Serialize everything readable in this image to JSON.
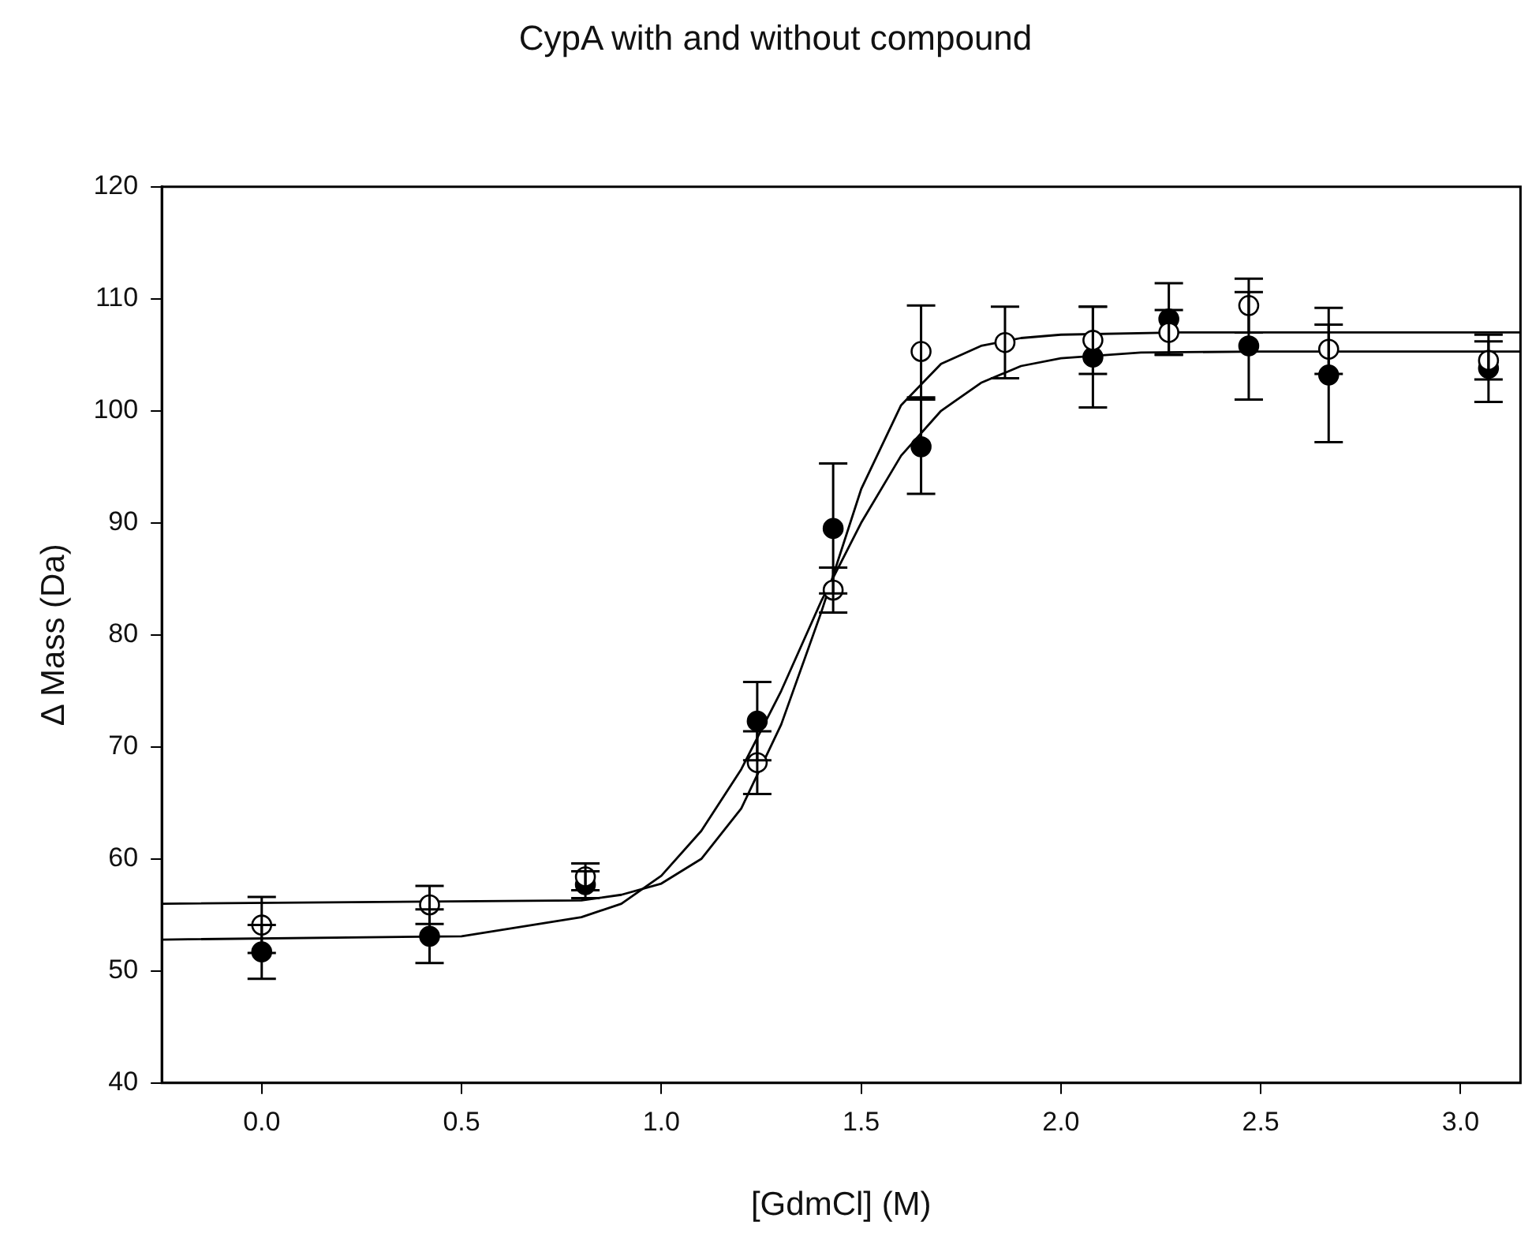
{
  "chart_data": {
    "type": "scatter",
    "title": "CypA with and without compound",
    "xlabel": "[GdmCl] (M)",
    "ylabel": "Δ Mass (Da)",
    "xlim": [
      -0.25,
      3.15
    ],
    "xticks": [
      {
        "value": 0,
        "label": "0.0"
      },
      {
        "value": 0.5,
        "label": "0.5"
      },
      {
        "value": 1,
        "label": "1.0"
      },
      {
        "value": 1.5,
        "label": "1.5"
      },
      {
        "value": 2,
        "label": "2.0"
      },
      {
        "value": 2.5,
        "label": "2.5"
      },
      {
        "value": 3,
        "label": "3.0"
      }
    ],
    "ylim": [
      40,
      120
    ],
    "yticks": [
      40,
      50,
      60,
      70,
      80,
      90,
      100,
      110,
      120
    ],
    "grid": false,
    "legend": false,
    "series": [
      {
        "type": "line",
        "marker": "none",
        "color": "#000000",
        "x": [
          -0.25,
          0.5,
          0.8,
          0.9,
          1.0,
          1.1,
          1.2,
          1.3,
          1.4,
          1.5,
          1.6,
          1.7,
          1.8,
          1.9,
          2.0,
          2.2,
          2.5,
          3.15
        ],
        "values": [
          52.8,
          53.1,
          54.8,
          56,
          58.5,
          62.5,
          68,
          75,
          83,
          90,
          96,
          100,
          102.5,
          104,
          104.7,
          105.2,
          105.3,
          105.3
        ]
      },
      {
        "type": "line",
        "marker": "none",
        "color": "#000000",
        "x": [
          -0.25,
          0.8,
          0.9,
          1.0,
          1.1,
          1.2,
          1.3,
          1.4,
          1.5,
          1.6,
          1.7,
          1.8,
          1.9,
          2.0,
          2.3,
          3.15
        ],
        "values": [
          56,
          56.3,
          56.8,
          57.8,
          60,
          64.5,
          72,
          82,
          93,
          100.5,
          104.2,
          105.8,
          106.5,
          106.8,
          107,
          107
        ]
      },
      {
        "type": "scatter",
        "marker": "circle",
        "color": "#000000",
        "x": [
          0,
          0.42,
          0.81,
          1.24,
          1.43,
          1.65,
          2.08,
          2.27,
          2.47,
          2.67,
          3.07
        ],
        "values": [
          51.7,
          53.1,
          57.7,
          72.3,
          89.5,
          96.8,
          104.8,
          108.2,
          105.8,
          103.2,
          103.8
        ],
        "errors": [
          2.4,
          2.4,
          1.2,
          3.5,
          5.8,
          4.2,
          4.5,
          3.2,
          4.8,
          6,
          3
        ]
      },
      {
        "type": "scatter",
        "marker": "circle",
        "color": "#ffffff",
        "x": [
          0,
          0.42,
          0.81,
          1.24,
          1.43,
          1.65,
          1.86,
          2.08,
          2.27,
          2.47,
          2.67,
          3.07
        ],
        "values": [
          54.1,
          55.9,
          58.4,
          68.6,
          84,
          105.3,
          106.1,
          106.3,
          107,
          109.4,
          105.5,
          104.5
        ],
        "errors": [
          2.5,
          1.7,
          1.2,
          2.8,
          2,
          4.1,
          3.2,
          3,
          2,
          2.4,
          2.2,
          1.7
        ]
      }
    ]
  }
}
